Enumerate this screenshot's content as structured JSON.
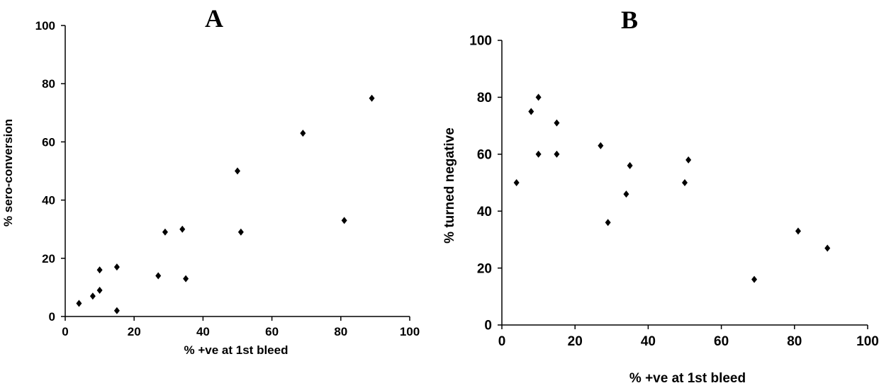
{
  "chart_data": [
    {
      "type": "scatter",
      "panel_label": "A",
      "xlabel": "% +ve at 1st bleed",
      "ylabel": "% sero-conversion",
      "xlim": [
        0,
        100
      ],
      "ylim": [
        0,
        100
      ],
      "xticks": [
        0,
        20,
        40,
        60,
        80,
        100
      ],
      "yticks": [
        0,
        20,
        40,
        60,
        80,
        100
      ],
      "grid": false,
      "marker": "diamond",
      "marker_color": "#000000",
      "points": [
        {
          "x": 4,
          "y": 4.5
        },
        {
          "x": 8,
          "y": 7
        },
        {
          "x": 10,
          "y": 9
        },
        {
          "x": 10,
          "y": 16
        },
        {
          "x": 15,
          "y": 17
        },
        {
          "x": 15,
          "y": 2
        },
        {
          "x": 27,
          "y": 14
        },
        {
          "x": 29,
          "y": 29
        },
        {
          "x": 34,
          "y": 30
        },
        {
          "x": 35,
          "y": 13
        },
        {
          "x": 50,
          "y": 50
        },
        {
          "x": 51,
          "y": 29
        },
        {
          "x": 69,
          "y": 63
        },
        {
          "x": 81,
          "y": 33
        },
        {
          "x": 89,
          "y": 75
        }
      ]
    },
    {
      "type": "scatter",
      "panel_label": "B",
      "xlabel": "% +ve at 1st bleed",
      "ylabel": "% turned negative",
      "xlim": [
        0,
        100
      ],
      "ylim": [
        0,
        100
      ],
      "xticks": [
        0,
        20,
        40,
        60,
        80,
        100
      ],
      "yticks": [
        0,
        20,
        40,
        60,
        80,
        100
      ],
      "grid": false,
      "marker": "diamond",
      "marker_color": "#000000",
      "points": [
        {
          "x": 4,
          "y": 50
        },
        {
          "x": 8,
          "y": 75
        },
        {
          "x": 10,
          "y": 80
        },
        {
          "x": 10,
          "y": 60
        },
        {
          "x": 15,
          "y": 71
        },
        {
          "x": 15,
          "y": 60
        },
        {
          "x": 27,
          "y": 63
        },
        {
          "x": 29,
          "y": 36
        },
        {
          "x": 34,
          "y": 46
        },
        {
          "x": 35,
          "y": 56
        },
        {
          "x": 50,
          "y": 50
        },
        {
          "x": 51,
          "y": 58
        },
        {
          "x": 69,
          "y": 16
        },
        {
          "x": 81,
          "y": 33
        },
        {
          "x": 89,
          "y": 27
        }
      ]
    }
  ]
}
